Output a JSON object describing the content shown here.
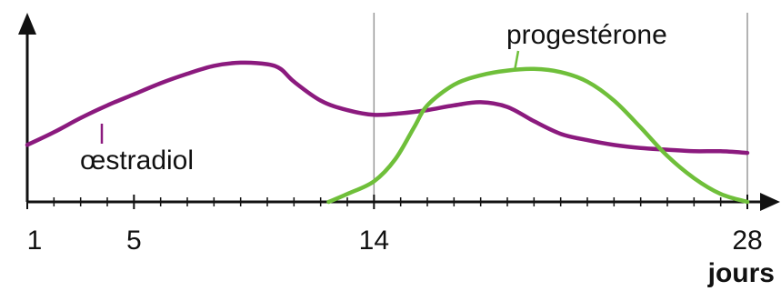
{
  "chart_data": {
    "type": "line",
    "xlabel": "jours",
    "ylabel": "",
    "xlim": [
      1,
      28
    ],
    "ylim": [
      0,
      1
    ],
    "x_ticks": [
      1,
      5,
      14,
      28
    ],
    "x_minor_ticks": [
      2,
      3,
      4,
      6,
      7,
      8,
      9,
      10,
      11,
      12,
      13,
      15,
      16,
      17,
      18,
      19,
      20,
      21,
      22,
      23,
      24,
      25,
      26,
      27
    ],
    "vertical_lines": [
      14,
      28
    ],
    "grid": false,
    "series": [
      {
        "name": "œstradiol",
        "color": "#8b1a7e",
        "x": [
          1,
          2,
          3,
          4,
          5,
          6,
          7,
          8,
          9,
          10,
          10.5,
          11,
          12,
          13,
          14,
          15,
          16,
          17,
          18,
          19,
          20,
          21,
          22,
          23,
          24,
          25,
          26,
          27,
          28
        ],
        "y": [
          0.36,
          0.44,
          0.53,
          0.61,
          0.68,
          0.75,
          0.81,
          0.86,
          0.88,
          0.87,
          0.84,
          0.76,
          0.64,
          0.58,
          0.55,
          0.56,
          0.58,
          0.61,
          0.63,
          0.6,
          0.51,
          0.43,
          0.39,
          0.36,
          0.34,
          0.33,
          0.32,
          0.32,
          0.31
        ]
      },
      {
        "name": "progestérone",
        "color": "#6fbf3a",
        "x": [
          12.3,
          13,
          14,
          14.8,
          15.5,
          16,
          17,
          18,
          19,
          20,
          21,
          22,
          23,
          24,
          25,
          26,
          27,
          28
        ],
        "y": [
          0.0,
          0.05,
          0.13,
          0.27,
          0.47,
          0.61,
          0.74,
          0.8,
          0.83,
          0.84,
          0.82,
          0.76,
          0.64,
          0.47,
          0.29,
          0.15,
          0.05,
          0.0
        ]
      }
    ],
    "annotations": [
      {
        "text": "œstradiol",
        "series": 0
      },
      {
        "text": "progestérone",
        "series": 1
      }
    ]
  }
}
